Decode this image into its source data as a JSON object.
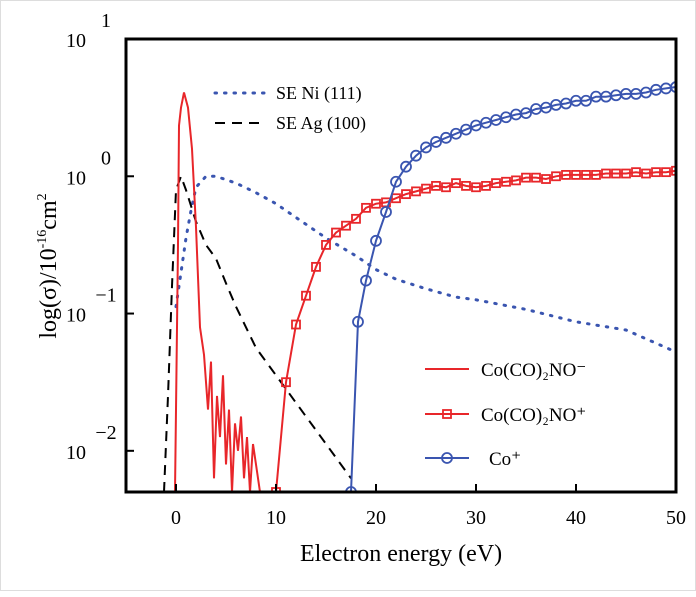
{
  "chart_data": {
    "type": "line",
    "title": "",
    "xlabel": "Electron energy (eV)",
    "ylabel": "log(σ)/10⁻¹⁶cm²",
    "xlim": [
      -5,
      50
    ],
    "ylim": [
      -2.3,
      1.0
    ],
    "y_scale": "log10",
    "x_ticks": [
      0,
      10,
      20,
      30,
      40,
      50
    ],
    "y_ticks": [
      {
        "base": "10",
        "exp": "1",
        "value": 1
      },
      {
        "base": "10",
        "exp": "0",
        "value": 0
      },
      {
        "base": "10",
        "exp": "−1",
        "value": -1
      },
      {
        "base": "10",
        "exp": "−2",
        "value": -2
      }
    ],
    "legend_top": [
      "SE Ni (111)",
      "SE Ag (100)"
    ],
    "legend_bottom": [
      "Co(CO)₂NO⁻",
      "Co(CO)₂NO⁺",
      "Co⁺"
    ],
    "series": [
      {
        "name": "SE Ni (111)",
        "color": "#3a55b0",
        "style": "dotted",
        "points": [
          [
            0,
            -0.95
          ],
          [
            0.5,
            -0.7
          ],
          [
            1,
            -0.45
          ],
          [
            1.5,
            -0.25
          ],
          [
            2,
            -0.08
          ],
          [
            3,
            0
          ],
          [
            4,
            0
          ],
          [
            6,
            -0.05
          ],
          [
            8,
            -0.12
          ],
          [
            10,
            -0.2
          ],
          [
            12,
            -0.3
          ],
          [
            15,
            -0.45
          ],
          [
            18,
            -0.58
          ],
          [
            20,
            -0.68
          ],
          [
            22,
            -0.75
          ],
          [
            25,
            -0.82
          ],
          [
            28,
            -0.88
          ],
          [
            30,
            -0.9
          ],
          [
            35,
            -0.97
          ],
          [
            40,
            -1.06
          ],
          [
            45,
            -1.12
          ],
          [
            50,
            -1.28
          ]
        ]
      },
      {
        "name": "SE Ag (100)",
        "color": "#000000",
        "style": "dashed",
        "points": [
          [
            -1.2,
            -2.3
          ],
          [
            -0.8,
            -1.6
          ],
          [
            -0.4,
            -0.8
          ],
          [
            0,
            -0.1
          ],
          [
            0.5,
            0
          ],
          [
            1,
            -0.1
          ],
          [
            2,
            -0.33
          ],
          [
            3,
            -0.5
          ],
          [
            4,
            -0.6
          ],
          [
            5,
            -0.78
          ],
          [
            6,
            -0.95
          ],
          [
            7,
            -1.1
          ],
          [
            8,
            -1.25
          ],
          [
            10,
            -1.45
          ],
          [
            12,
            -1.65
          ],
          [
            14,
            -1.85
          ],
          [
            16,
            -2.05
          ],
          [
            17.5,
            -2.2
          ]
        ]
      },
      {
        "name": "Co(CO)₂NO⁻",
        "color": "#e8262a",
        "style": "solid",
        "points": [
          [
            -0.1,
            -2.3
          ],
          [
            0.2,
            -0.5
          ],
          [
            0.3,
            0.37
          ],
          [
            0.5,
            0.5
          ],
          [
            0.8,
            0.61
          ],
          [
            1.2,
            0.5
          ],
          [
            1.6,
            0.2
          ],
          [
            2,
            -0.37
          ],
          [
            2.4,
            -1.1
          ],
          [
            2.8,
            -1.3
          ],
          [
            3.2,
            -1.7
          ],
          [
            3.5,
            -1.35
          ],
          [
            3.8,
            -2.2
          ],
          [
            4.1,
            -1.6
          ],
          [
            4.4,
            -1.9
          ],
          [
            4.7,
            -1.45
          ],
          [
            5,
            -2.1
          ],
          [
            5.3,
            -1.7
          ],
          [
            5.6,
            -2.3
          ],
          [
            5.9,
            -1.8
          ],
          [
            6.2,
            -2.0
          ],
          [
            6.5,
            -1.75
          ],
          [
            6.8,
            -2.2
          ],
          [
            7.1,
            -1.9
          ],
          [
            7.4,
            -2.3
          ],
          [
            7.7,
            -1.95
          ],
          [
            8,
            -2.1
          ],
          [
            8.4,
            -2.3
          ]
        ]
      },
      {
        "name": "Co(CO)₂NO⁺",
        "color": "#e8262a",
        "style": "solid",
        "marker": "square",
        "points": [
          [
            10,
            -2.3
          ],
          [
            11,
            -1.5
          ],
          [
            12,
            -1.08
          ],
          [
            13,
            -0.87
          ],
          [
            14,
            -0.66
          ],
          [
            15,
            -0.5
          ],
          [
            16,
            -0.41
          ],
          [
            17,
            -0.36
          ],
          [
            18,
            -0.31
          ],
          [
            19,
            -0.23
          ],
          [
            20,
            -0.2
          ],
          [
            21,
            -0.19
          ],
          [
            22,
            -0.16
          ],
          [
            23,
            -0.13
          ],
          [
            24,
            -0.11
          ],
          [
            25,
            -0.09
          ],
          [
            26,
            -0.07
          ],
          [
            27,
            -0.08
          ],
          [
            28,
            -0.05
          ],
          [
            29,
            -0.07
          ],
          [
            30,
            -0.08
          ],
          [
            31,
            -0.07
          ],
          [
            32,
            -0.05
          ],
          [
            33,
            -0.04
          ],
          [
            34,
            -0.03
          ],
          [
            35,
            -0.01
          ],
          [
            36,
            -0.01
          ],
          [
            37,
            -0.02
          ],
          [
            38,
            0
          ],
          [
            39,
            0.01
          ],
          [
            40,
            0.01
          ],
          [
            41,
            0.01
          ],
          [
            42,
            0.01
          ],
          [
            43,
            0.02
          ],
          [
            44,
            0.02
          ],
          [
            45,
            0.02
          ],
          [
            46,
            0.03
          ],
          [
            47,
            0.02
          ],
          [
            48,
            0.03
          ],
          [
            49,
            0.03
          ],
          [
            50,
            0.04
          ]
        ]
      },
      {
        "name": "Co⁺",
        "color": "#3a55b0",
        "style": "solid",
        "marker": "circle",
        "points": [
          [
            17.5,
            -2.3
          ],
          [
            18.2,
            -1.06
          ],
          [
            19,
            -0.76
          ],
          [
            20,
            -0.47
          ],
          [
            21,
            -0.26
          ],
          [
            22,
            -0.04
          ],
          [
            23,
            0.07
          ],
          [
            24,
            0.15
          ],
          [
            25,
            0.21
          ],
          [
            26,
            0.25
          ],
          [
            27,
            0.28
          ],
          [
            28,
            0.31
          ],
          [
            29,
            0.34
          ],
          [
            30,
            0.37
          ],
          [
            31,
            0.39
          ],
          [
            32,
            0.41
          ],
          [
            33,
            0.43
          ],
          [
            34,
            0.45
          ],
          [
            35,
            0.46
          ],
          [
            36,
            0.49
          ],
          [
            37,
            0.5
          ],
          [
            38,
            0.52
          ],
          [
            39,
            0.53
          ],
          [
            40,
            0.55
          ],
          [
            41,
            0.55
          ],
          [
            42,
            0.58
          ],
          [
            43,
            0.58
          ],
          [
            44,
            0.59
          ],
          [
            45,
            0.6
          ],
          [
            46,
            0.6
          ],
          [
            47,
            0.61
          ],
          [
            48,
            0.63
          ],
          [
            49,
            0.64
          ],
          [
            50,
            0.65
          ]
        ]
      }
    ]
  }
}
